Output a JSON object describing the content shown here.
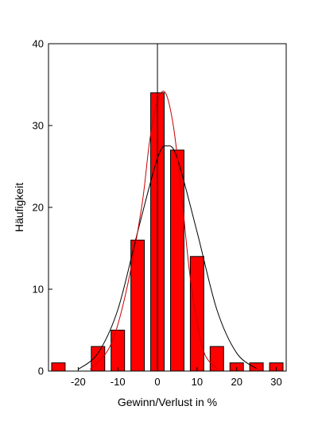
{
  "chart_data": {
    "type": "bar",
    "xlabel": "Gewinn/Verlust in %",
    "ylabel": "Häufigkeit",
    "xlim": [
      -27.5,
      32.5
    ],
    "ylim": [
      0,
      40
    ],
    "xticks": [
      -20,
      -10,
      0,
      10,
      20,
      30
    ],
    "yticks": [
      0,
      10,
      20,
      30,
      40
    ],
    "bin_width": 5,
    "bars": [
      {
        "x": -25,
        "value": 1
      },
      {
        "x": -15,
        "value": 3
      },
      {
        "x": -10,
        "value": 5
      },
      {
        "x": -5,
        "value": 16
      },
      {
        "x": 0,
        "value": 34
      },
      {
        "x": 5,
        "value": 27
      },
      {
        "x": 10,
        "value": 14
      },
      {
        "x": 15,
        "value": 3
      },
      {
        "x": 20,
        "value": 1
      },
      {
        "x": 25,
        "value": 1
      },
      {
        "x": 30,
        "value": 1
      }
    ],
    "curves": [
      {
        "color": "#000000",
        "points": [
          [
            -20,
            0.2
          ],
          [
            -15,
            2.2
          ],
          [
            -10,
            7.5
          ],
          [
            -5,
            17
          ],
          [
            0,
            26
          ],
          [
            2.5,
            27.5
          ],
          [
            5,
            26
          ],
          [
            10,
            17
          ],
          [
            15,
            7.5
          ],
          [
            20,
            2.2
          ],
          [
            25,
            0.3
          ]
        ]
      },
      {
        "color": "#cc0000",
        "points": [
          [
            -17,
            0.2
          ],
          [
            -12,
            3
          ],
          [
            -8,
            9.5
          ],
          [
            -4,
            20
          ],
          [
            -2,
            28
          ],
          [
            0,
            33
          ],
          [
            2,
            34
          ],
          [
            4,
            30
          ],
          [
            6,
            22
          ],
          [
            8,
            12.5
          ],
          [
            10,
            6
          ],
          [
            12,
            2
          ],
          [
            15,
            0.3
          ]
        ]
      }
    ],
    "bar_color": "#ff0000",
    "bar_edge_color": "#000000",
    "zero_line": true,
    "grid": false
  }
}
